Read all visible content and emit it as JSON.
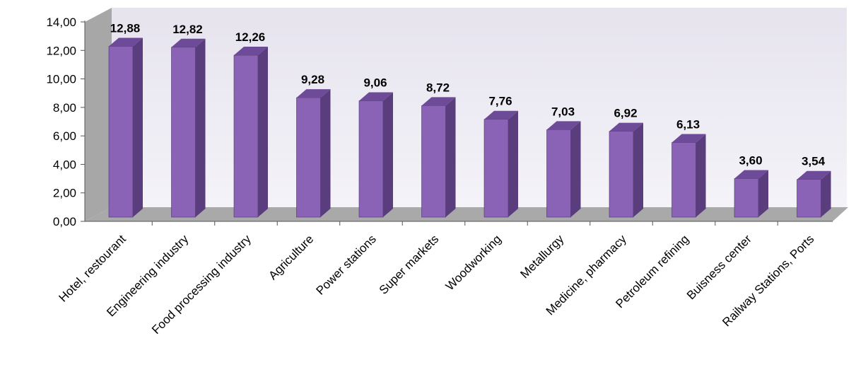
{
  "chart_data": {
    "type": "bar",
    "style": "3d-column",
    "categories": [
      "Hotel, restourant",
      "Engineering industry",
      "Food processing industry",
      "Agriculture",
      "Power stations",
      "Super markets",
      "Woodworking",
      "Metallurgy",
      "Medicine, pharmacy",
      "Petroleum refining",
      "Buisness center",
      "Railway Stations, Ports"
    ],
    "values": [
      12.88,
      12.82,
      12.26,
      9.28,
      9.06,
      8.72,
      7.76,
      7.03,
      6.92,
      6.13,
      3.6,
      3.54
    ],
    "value_labels": [
      "12,88",
      "12,82",
      "12,26",
      "9,28",
      "9,06",
      "8,72",
      "7,76",
      "7,03",
      "6,92",
      "6,13",
      "3,60",
      "3,54"
    ],
    "y_ticks": [
      0,
      2,
      4,
      6,
      8,
      10,
      12,
      14
    ],
    "y_tick_labels": [
      "0,00",
      "2,00",
      "4,00",
      "6,00",
      "8,00",
      "10,00",
      "12,00",
      "14,00"
    ],
    "ylim": [
      0,
      14
    ],
    "grid": false,
    "legend": "none",
    "colors": {
      "bar_front": "#8a63b6",
      "bar_side": "#5a3d7d",
      "bar_top": "#6e4b98",
      "back_wall": "#e6e3ee",
      "side_wall": "#a7a7a7",
      "floor": "#a9a9a9"
    }
  }
}
